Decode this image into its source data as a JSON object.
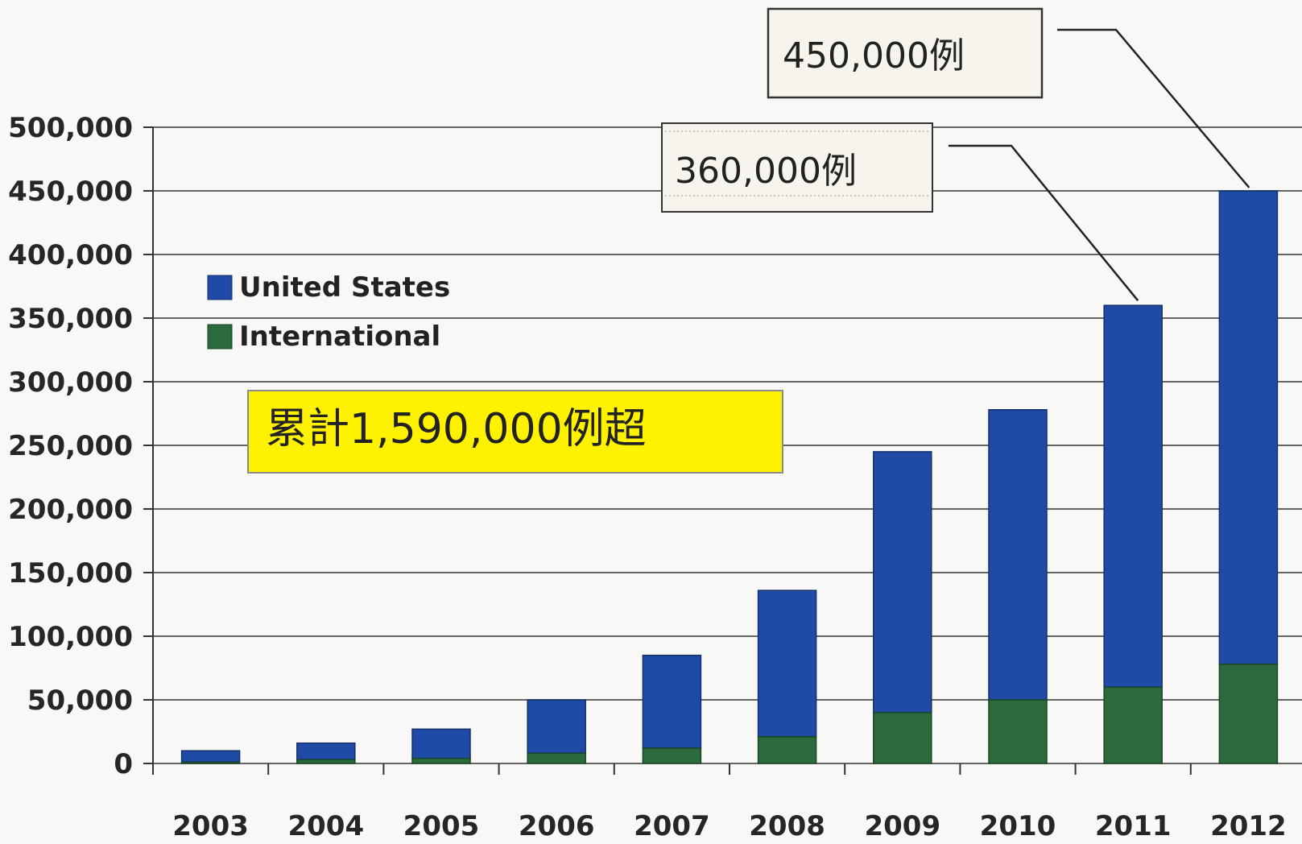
{
  "colors": {
    "us": "#1f4aa6",
    "intl": "#2a6a3c",
    "grid": "#333333",
    "highlight": "#fff200",
    "background": "#f8f9f6"
  },
  "chart_data": {
    "type": "bar",
    "stacked": true,
    "categories": [
      "2003",
      "2004",
      "2005",
      "2006",
      "2007",
      "2008",
      "2009",
      "2010",
      "2011",
      "2012"
    ],
    "series": [
      {
        "name": "United States",
        "values": [
          9000,
          13000,
          23000,
          42000,
          73000,
          115000,
          205000,
          228000,
          300000,
          372000
        ]
      },
      {
        "name": "International",
        "values": [
          1000,
          3000,
          4000,
          8000,
          12000,
          21000,
          40000,
          50000,
          60000,
          78000
        ]
      }
    ],
    "ylim": [
      0,
      500000
    ],
    "yticks": [
      0,
      50000,
      100000,
      150000,
      200000,
      250000,
      300000,
      350000,
      400000,
      450000,
      500000
    ],
    "ytick_labels": [
      "0",
      "50,000",
      "100,000",
      "150,000",
      "200,000",
      "250,000",
      "300,000",
      "350,000",
      "400,000",
      "450,000",
      "500,000"
    ],
    "grid": true,
    "legend": "upper-left",
    "annotations": [
      {
        "text": "450,000例",
        "target": "2012"
      },
      {
        "text": "360,000例",
        "target": "2011"
      },
      {
        "text": "累計1,590,000例超",
        "style": "highlight"
      }
    ]
  }
}
